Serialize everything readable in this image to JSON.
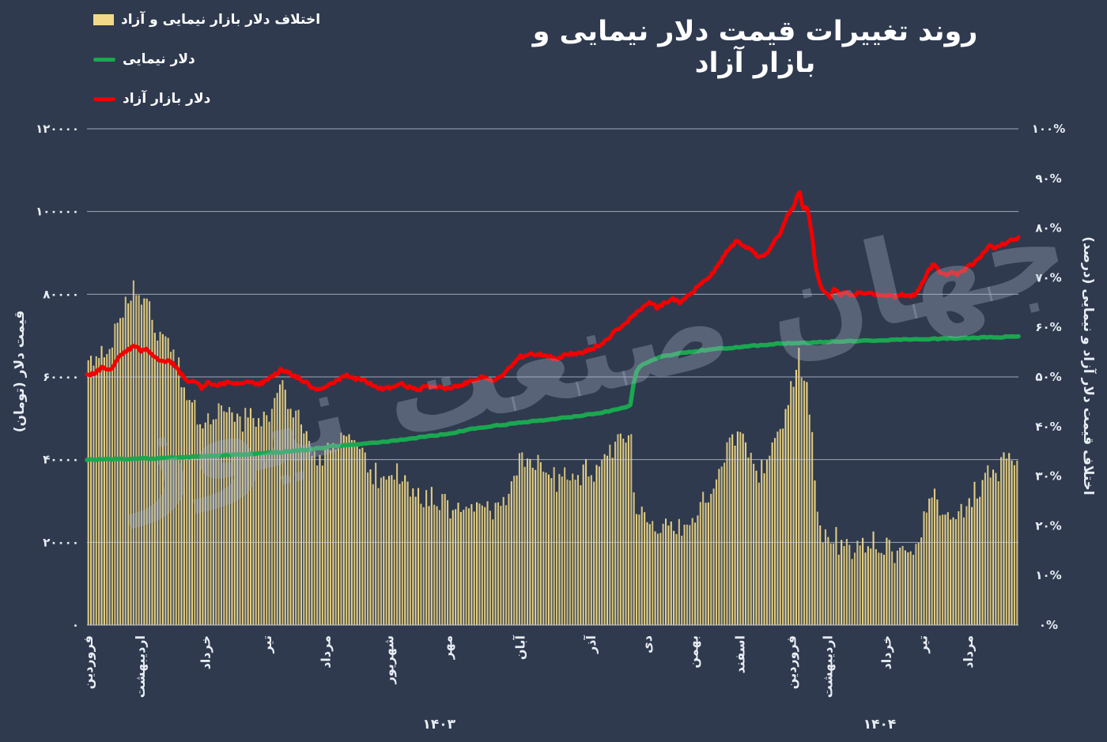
{
  "page": {
    "title": "روند تغییرات قیمت دلار نیمایی و بازار آزاد",
    "background_color": "#2F3A4F",
    "grid_color": "#C8CEDA",
    "text_color": "#E9EDF4"
  },
  "legend": {
    "items": [
      {
        "label": "اختلاف دلار بازار نیمایی و آزاد",
        "marker": "bar",
        "color": "#F2D989"
      },
      {
        "label": "دلار نیمایی",
        "marker": "line",
        "color": "#19A84F"
      },
      {
        "label": "دلار بازار آزاد",
        "marker": "line",
        "color": "#F40000"
      }
    ]
  },
  "watermark": {
    "text": "جهان صنعت نیوز"
  },
  "chart_data": {
    "type": "combo",
    "title": "روند تغییرات قیمت دلار نیمایی و بازار آزاد",
    "left_axis": {
      "title": "قیمت دلار (تومان)",
      "min": 0,
      "max": 120000,
      "tick_step": 20000,
      "tick_values": [
        0,
        20000,
        40000,
        60000,
        80000,
        100000,
        120000
      ],
      "tick_labels": [
        "۰",
        "۲۰۰۰۰",
        "۴۰۰۰۰",
        "۶۰۰۰۰",
        "۸۰۰۰۰",
        "۱۰۰۰۰۰",
        "۱۲۰۰۰۰"
      ]
    },
    "right_axis": {
      "title": "اختلاف قیمت دلار آزاد و نیمایی (درصد)",
      "min": 0,
      "max": 100,
      "tick_step": 10,
      "tick_values": [
        0,
        10,
        20,
        30,
        40,
        50,
        60,
        70,
        80,
        90,
        100
      ],
      "tick_labels": [
        "۰%",
        "۱۰%",
        "۲۰%",
        "۳۰%",
        "۴۰%",
        "۵۰%",
        "۶۰%",
        "۷۰%",
        "۸۰%",
        "۹۰%",
        "۱۰۰%"
      ]
    },
    "x_axis": {
      "months": [
        {
          "label": "فروردین",
          "f": 0.0
        },
        {
          "label": "اردیبهشت",
          "f": 0.056
        },
        {
          "label": "خرداد",
          "f": 0.126
        },
        {
          "label": "تیر",
          "f": 0.192
        },
        {
          "label": "مرداد",
          "f": 0.255
        },
        {
          "label": "شهریور",
          "f": 0.323
        },
        {
          "label": "مهر",
          "f": 0.386
        },
        {
          "label": "آبان",
          "f": 0.464
        },
        {
          "label": "آذر",
          "f": 0.54
        },
        {
          "label": "دی",
          "f": 0.6
        },
        {
          "label": "بهمن",
          "f": 0.65
        },
        {
          "label": "اسفند",
          "f": 0.7
        },
        {
          "label": "فروردین",
          "f": 0.755
        },
        {
          "label": "اردیبهشت",
          "f": 0.794
        },
        {
          "label": "خرداد",
          "f": 0.857
        },
        {
          "label": "تیر",
          "f": 0.896
        },
        {
          "label": "مرداد",
          "f": 0.945
        }
      ],
      "years": [
        {
          "label": "۱۴۰۳",
          "f": 0.378
        },
        {
          "label": "۱۴۰۴",
          "f": 0.851
        }
      ]
    },
    "series": [
      {
        "name": "دلار بازار آزاد",
        "type": "line",
        "axis": "left",
        "color": "#F40000",
        "width": 5,
        "points": [
          [
            0.0,
            60500
          ],
          [
            0.008,
            61000
          ],
          [
            0.017,
            62400
          ],
          [
            0.024,
            61500
          ],
          [
            0.032,
            64000
          ],
          [
            0.038,
            65800
          ],
          [
            0.045,
            66600
          ],
          [
            0.051,
            67600
          ],
          [
            0.058,
            66400
          ],
          [
            0.064,
            67200
          ],
          [
            0.072,
            64600
          ],
          [
            0.081,
            63600
          ],
          [
            0.089,
            64000
          ],
          [
            0.098,
            61600
          ],
          [
            0.106,
            59200
          ],
          [
            0.115,
            58900
          ],
          [
            0.123,
            57400
          ],
          [
            0.129,
            58600
          ],
          [
            0.136,
            57900
          ],
          [
            0.149,
            58600
          ],
          [
            0.161,
            58300
          ],
          [
            0.174,
            58600
          ],
          [
            0.187,
            58400
          ],
          [
            0.199,
            60000
          ],
          [
            0.208,
            61700
          ],
          [
            0.216,
            61000
          ],
          [
            0.227,
            59800
          ],
          [
            0.238,
            58100
          ],
          [
            0.246,
            56900
          ],
          [
            0.256,
            57700
          ],
          [
            0.267,
            59100
          ],
          [
            0.278,
            60400
          ],
          [
            0.289,
            59500
          ],
          [
            0.299,
            59000
          ],
          [
            0.307,
            57900
          ],
          [
            0.316,
            57100
          ],
          [
            0.327,
            57600
          ],
          [
            0.335,
            58400
          ],
          [
            0.346,
            57500
          ],
          [
            0.355,
            56700
          ],
          [
            0.365,
            57900
          ],
          [
            0.375,
            57600
          ],
          [
            0.386,
            57300
          ],
          [
            0.397,
            57600
          ],
          [
            0.407,
            58600
          ],
          [
            0.418,
            59500
          ],
          [
            0.426,
            60200
          ],
          [
            0.435,
            59100
          ],
          [
            0.443,
            59600
          ],
          [
            0.454,
            62100
          ],
          [
            0.463,
            64800
          ],
          [
            0.474,
            65300
          ],
          [
            0.484,
            65700
          ],
          [
            0.494,
            64900
          ],
          [
            0.503,
            64400
          ],
          [
            0.514,
            65400
          ],
          [
            0.525,
            65700
          ],
          [
            0.535,
            66300
          ],
          [
            0.545,
            67100
          ],
          [
            0.556,
            68600
          ],
          [
            0.567,
            71100
          ],
          [
            0.577,
            72900
          ],
          [
            0.586,
            74600
          ],
          [
            0.596,
            76600
          ],
          [
            0.604,
            78300
          ],
          [
            0.613,
            76600
          ],
          [
            0.621,
            78100
          ],
          [
            0.63,
            78900
          ],
          [
            0.638,
            77900
          ],
          [
            0.647,
            80100
          ],
          [
            0.655,
            81600
          ],
          [
            0.664,
            83600
          ],
          [
            0.672,
            85100
          ],
          [
            0.681,
            88100
          ],
          [
            0.689,
            91100
          ],
          [
            0.698,
            92900
          ],
          [
            0.706,
            91600
          ],
          [
            0.715,
            90300
          ],
          [
            0.721,
            88600
          ],
          [
            0.73,
            90100
          ],
          [
            0.737,
            92600
          ],
          [
            0.745,
            95100
          ],
          [
            0.752,
            99100
          ],
          [
            0.759,
            101300
          ],
          [
            0.765,
            105600
          ],
          [
            0.768,
            100800
          ],
          [
            0.772,
            101500
          ],
          [
            0.774,
            100800
          ],
          [
            0.779,
            93100
          ],
          [
            0.783,
            85600
          ],
          [
            0.788,
            82100
          ],
          [
            0.793,
            80100
          ],
          [
            0.798,
            79100
          ],
          [
            0.803,
            81600
          ],
          [
            0.808,
            79600
          ],
          [
            0.815,
            80900
          ],
          [
            0.822,
            79300
          ],
          [
            0.828,
            80600
          ],
          [
            0.835,
            79900
          ],
          [
            0.842,
            80400
          ],
          [
            0.851,
            79600
          ],
          [
            0.859,
            79900
          ],
          [
            0.867,
            79300
          ],
          [
            0.876,
            79900
          ],
          [
            0.884,
            79400
          ],
          [
            0.891,
            80300
          ],
          [
            0.898,
            83100
          ],
          [
            0.904,
            86100
          ],
          [
            0.91,
            87300
          ],
          [
            0.915,
            85600
          ],
          [
            0.922,
            84400
          ],
          [
            0.929,
            85400
          ],
          [
            0.935,
            84600
          ],
          [
            0.942,
            85900
          ],
          [
            0.949,
            87100
          ],
          [
            0.956,
            88400
          ],
          [
            0.963,
            90100
          ],
          [
            0.97,
            91900
          ],
          [
            0.976,
            91100
          ],
          [
            0.983,
            92100
          ],
          [
            0.991,
            92900
          ],
          [
            1.0,
            93600
          ]
        ]
      },
      {
        "name": "دلار نیمایی",
        "type": "line",
        "axis": "left",
        "color": "#19A84F",
        "width": 5.5,
        "points": [
          [
            0.0,
            40000
          ],
          [
            0.076,
            40300
          ],
          [
            0.144,
            41000
          ],
          [
            0.195,
            41600
          ],
          [
            0.229,
            42200
          ],
          [
            0.263,
            43200
          ],
          [
            0.297,
            43900
          ],
          [
            0.331,
            44600
          ],
          [
            0.365,
            45600
          ],
          [
            0.39,
            46300
          ],
          [
            0.416,
            47600
          ],
          [
            0.45,
            48500
          ],
          [
            0.484,
            49400
          ],
          [
            0.518,
            50300
          ],
          [
            0.543,
            51000
          ],
          [
            0.564,
            51900
          ],
          [
            0.58,
            52900
          ],
          [
            0.584,
            53300
          ],
          [
            0.588,
            60500
          ],
          [
            0.594,
            62800
          ],
          [
            0.603,
            63700
          ],
          [
            0.615,
            64800
          ],
          [
            0.628,
            65300
          ],
          [
            0.645,
            66000
          ],
          [
            0.671,
            66700
          ],
          [
            0.705,
            67300
          ],
          [
            0.739,
            68000
          ],
          [
            0.772,
            68300
          ],
          [
            0.806,
            68600
          ],
          [
            0.841,
            68800
          ],
          [
            0.874,
            69000
          ],
          [
            0.908,
            69200
          ],
          [
            0.942,
            69400
          ],
          [
            0.976,
            69600
          ],
          [
            1.0,
            69800
          ]
        ]
      },
      {
        "name": "اختلاف دلار بازار نیمایی و آزاد",
        "type": "bar",
        "axis": "right",
        "color": "#EDD685",
        "bar_count": 350,
        "formula": "(azad - nima) / nima * 100"
      }
    ]
  }
}
